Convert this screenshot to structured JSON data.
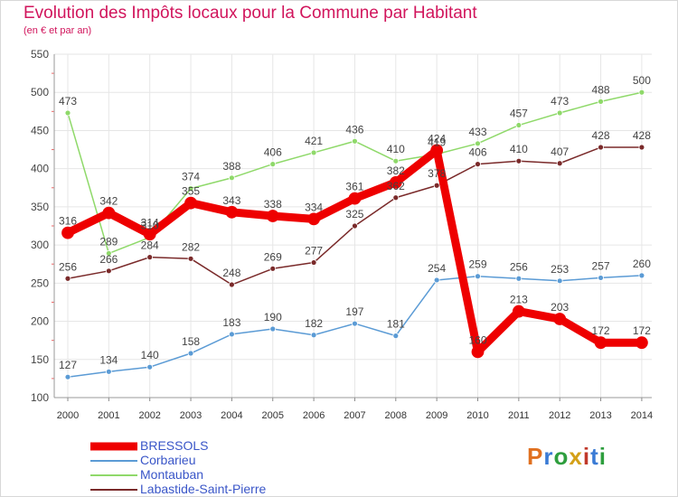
{
  "title": "Evolution des Impôts locaux pour la Commune par Habitant",
  "subtitle": "(en € et par an)",
  "logo": {
    "text": "Proxiti",
    "colors": [
      "#e07020",
      "#3a7bd5",
      "#2e9e3e",
      "#d4a017",
      "#c0392b",
      "#3a7bd5",
      "#2e9e3e"
    ]
  },
  "chart_data": {
    "type": "line",
    "title": "Evolution des Impôts locaux pour la Commune par Habitant",
    "xlabel": "",
    "ylabel": "",
    "categories": [
      "2000",
      "2001",
      "2002",
      "2003",
      "2004",
      "2005",
      "2006",
      "2007",
      "2008",
      "2009",
      "2010",
      "2011",
      "2012",
      "2013",
      "2014"
    ],
    "ylim": [
      100,
      550
    ],
    "yticks": [
      100,
      150,
      200,
      250,
      300,
      350,
      400,
      450,
      500,
      550
    ],
    "grid": true,
    "legend": "bottom-left",
    "series": [
      {
        "name": "BRESSOLS",
        "color": "#ee0000",
        "emphasis": true,
        "values": [
          316,
          342,
          314,
          355,
          343,
          338,
          334,
          361,
          382,
          424,
          160,
          213,
          203,
          172,
          172
        ]
      },
      {
        "name": "Corbarieu",
        "color": "#5b9bd5",
        "emphasis": false,
        "values": [
          127,
          134,
          140,
          158,
          183,
          190,
          182,
          197,
          181,
          254,
          259,
          256,
          253,
          257,
          260
        ]
      },
      {
        "name": "Montauban",
        "color": "#8fd96a",
        "emphasis": false,
        "values": [
          473,
          289,
          310,
          374,
          388,
          406,
          421,
          436,
          410,
          419,
          433,
          457,
          473,
          488,
          500
        ]
      },
      {
        "name": "Labastide-Saint-Pierre",
        "color": "#7a2a2a",
        "emphasis": false,
        "values": [
          256,
          266,
          284,
          282,
          248,
          269,
          277,
          325,
          362,
          378,
          406,
          410,
          407,
          428,
          428
        ]
      }
    ]
  }
}
